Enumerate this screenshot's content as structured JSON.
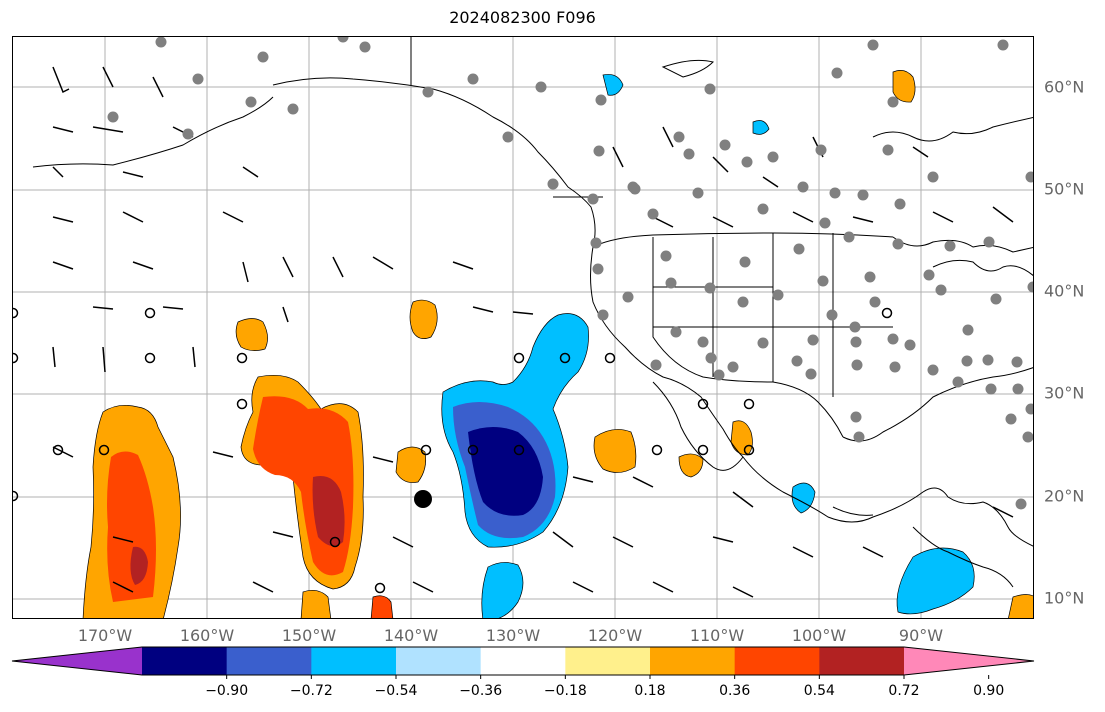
{
  "title": "2024082300 F096",
  "lon_labels": [
    "170°W",
    "160°W",
    "150°W",
    "140°W",
    "130°W",
    "120°W",
    "110°W",
    "100°W",
    "90°W"
  ],
  "lat_labels": [
    "60°N",
    "50°N",
    "40°N",
    "30°N",
    "20°N",
    "10°N"
  ],
  "colorbar": {
    "tick_labels": [
      "−0.90",
      "−0.72",
      "−0.54",
      "−0.36",
      "−0.18",
      "0.18",
      "0.36",
      "0.54",
      "0.72",
      "0.90"
    ],
    "colors": [
      "#9932cc",
      "#000080",
      "#3a5fcd",
      "#00bfff",
      "#b0e2ff",
      "#ffffff",
      "#fff08c",
      "#ffa500",
      "#ff4500",
      "#b22222",
      "#ff88b8"
    ]
  },
  "colors": {
    "land_border": "#000000",
    "grid": "#b0b0b0",
    "station": "#808080",
    "axis_label": "#666666"
  }
}
